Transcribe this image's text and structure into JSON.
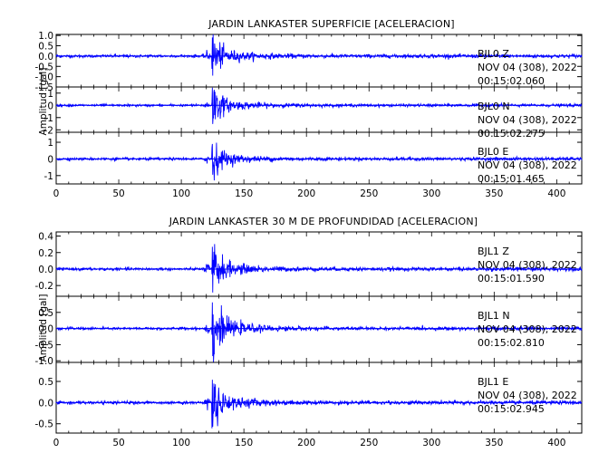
{
  "chart_data": [
    {
      "type": "line",
      "title": "JARDIN LANKASTER SUPERFICIE [ACELERACION]",
      "ylabel": "Amplitud [gal]",
      "xlabel": "",
      "xlim": [
        0,
        420
      ],
      "xticks": [
        "0",
        "50",
        "100",
        "150",
        "200",
        "250",
        "300",
        "350",
        "400"
      ],
      "grid": false,
      "event_onset_s": 124.5,
      "panels": [
        {
          "name": "BJL0 Z",
          "station_label": "BJL0   Z",
          "date_label": "NOV 04 (308), 2022",
          "time_label": "00:15:02.060",
          "ylim": [
            -1.5,
            1.05
          ],
          "yticks": [
            {
              "v": 1.0,
              "t": "1.0"
            },
            {
              "v": 0.5,
              "t": "0.5"
            },
            {
              "v": 0.0,
              "t": "0.0"
            },
            {
              "v": -0.5,
              "t": "-0.5"
            },
            {
              "v": -1.0,
              "t": "-1.0"
            },
            {
              "v": -1.5,
              "t": "-1.5"
            }
          ],
          "peak_amplitude": 1.0,
          "noise_level": 0.06,
          "color": "#0000ff"
        },
        {
          "name": "BJL0 N",
          "station_label": "BJL0   N",
          "date_label": "NOV 04 (308), 2022",
          "time_label": "00:15:02.275",
          "ylim": [
            -2.2,
            1.5
          ],
          "yticks": [
            {
              "v": 1,
              "t": "1"
            },
            {
              "v": 0,
              "t": "0"
            },
            {
              "v": -1,
              "t": "-1"
            },
            {
              "v": -2,
              "t": "-2"
            }
          ],
          "peak_amplitude": 1.6,
          "noise_level": 0.08,
          "color": "#0000ff"
        },
        {
          "name": "BJL0 E",
          "station_label": "BJL0   E",
          "date_label": "NOV 04 (308), 2022",
          "time_label": "00:15:01.465",
          "ylim": [
            -1.5,
            1.6
          ],
          "yticks": [
            {
              "v": 1,
              "t": "1"
            },
            {
              "v": 0,
              "t": "0"
            },
            {
              "v": -1,
              "t": "-1"
            }
          ],
          "peak_amplitude": 1.0,
          "noise_level": 0.07,
          "color": "#0000ff"
        }
      ]
    },
    {
      "type": "line",
      "title": "JARDIN LANKASTER 30 M DE PROFUNDIDAD [ACELERACION]",
      "ylabel": "Amplitud [gal]",
      "xlabel": "",
      "xlim": [
        0,
        420
      ],
      "xticks": [
        "0",
        "50",
        "100",
        "150",
        "200",
        "250",
        "300",
        "350",
        "400"
      ],
      "grid": false,
      "event_onset_s": 124.5,
      "panels": [
        {
          "name": "BJL1 Z",
          "station_label": "BJL1   Z",
          "date_label": "NOV 04 (308), 2022",
          "time_label": "00:15:01.590",
          "ylim": [
            -0.33,
            0.45
          ],
          "yticks": [
            {
              "v": 0.4,
              "t": "0.4"
            },
            {
              "v": 0.2,
              "t": "0.2"
            },
            {
              "v": 0.0,
              "t": "0.0"
            },
            {
              "v": -0.2,
              "t": "-0.2"
            }
          ],
          "peak_amplitude": 0.3,
          "noise_level": 0.015,
          "color": "#0000ff"
        },
        {
          "name": "BJL1 N",
          "station_label": "BJL1   N",
          "date_label": "NOV 04 (308), 2022",
          "time_label": "00:15:02.810",
          "ylim": [
            -1.05,
            1.0
          ],
          "yticks": [
            {
              "v": 0.5,
              "t": "0.5"
            },
            {
              "v": 0.0,
              "t": "0.0"
            },
            {
              "v": -0.5,
              "t": "-0.5"
            },
            {
              "v": -1.0,
              "t": "-1.0"
            }
          ],
          "peak_amplitude": 0.9,
          "noise_level": 0.035,
          "color": "#0000ff"
        },
        {
          "name": "BJL1 E",
          "station_label": "BJL1   E",
          "date_label": "NOV 04 (308), 2022",
          "time_label": "00:15:02.945",
          "ylim": [
            -0.72,
            0.95
          ],
          "yticks": [
            {
              "v": 0.5,
              "t": "0.5"
            },
            {
              "v": 0.0,
              "t": "0.0"
            },
            {
              "v": -0.5,
              "t": "-0.5"
            }
          ],
          "peak_amplitude": 0.6,
          "noise_level": 0.03,
          "color": "#0000ff"
        }
      ]
    }
  ]
}
